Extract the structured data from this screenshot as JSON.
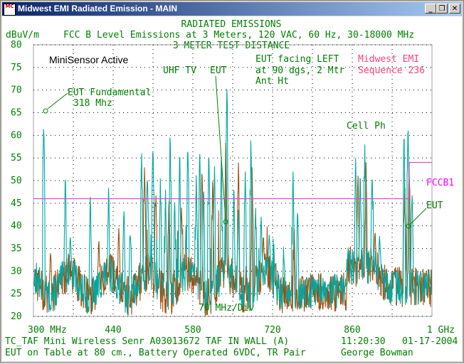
{
  "window": {
    "title": "Midwest EMI Radiated Emission - MAIN",
    "icon_label": "MC",
    "buttons": {
      "minimize": "_",
      "maximize": "❐",
      "close": "✕"
    }
  },
  "header": {
    "title": "RADIATED EMISSIONS",
    "subtitle": "FCC B Level Emissions at 3 Meters, 120 VAC, 60 Hz, 30-18000 MHz",
    "distance": "3 METER TEST DISTANCE",
    "units": "dBuV/m"
  },
  "annotations": {
    "minisensor": "MiniSensor Active",
    "uhf": "UHF TV",
    "eut_center": "EUT",
    "facing1": "EUT facing LEFT",
    "facing2": "at 90 dgs, 2 Mtr",
    "facing3": "Ant Ht",
    "company": "Midwest EMI",
    "sequence": "Sequence 236",
    "fundamental1": "EUT Fundamental",
    "fundamental2": "318 Mhz",
    "cell": "Cell Ph",
    "limit_label": "FCCB1",
    "eut_right": "EUT",
    "div_label": "70 MHz/Div"
  },
  "footer": {
    "line1_left": "TC_TAF Mini Wireless Senr  A03013672 TAF IN WALL (A)",
    "time": "11:20:30",
    "date": "01-17-2004",
    "line2_left": "EUT on Table at 80 cm., Battery Operated 6VDC, TR Pair",
    "operator": "George Bowman"
  },
  "colors": {
    "title_blue": "#0a246a",
    "text_green": "#008000",
    "text_magenta": "#ff00ff",
    "company_red": "#ff4080",
    "teal_trace": "#00a8a0",
    "brown_trace": "#a05010",
    "limit_line": "#d050d0",
    "grid_dots": "#000000"
  },
  "chart_data": {
    "type": "line",
    "ylabel": "dBuV/m",
    "ylim": [
      20,
      80
    ],
    "yticks": [
      "80",
      "75",
      "70",
      "65",
      "60",
      "55",
      "50",
      "45",
      "40",
      "35",
      "30",
      "25",
      "20"
    ],
    "xlim": [
      300,
      1000
    ],
    "xticks": [
      "300 MHz",
      "440",
      "580",
      "720",
      "860",
      "1 GHz"
    ],
    "xtick_values": [
      300,
      440,
      580,
      720,
      860,
      1000
    ],
    "series": [
      {
        "name": "FCCB1",
        "x": [
          300,
          960,
          960,
          1000
        ],
        "y": [
          46,
          46,
          54,
          54
        ]
      },
      {
        "color": "teal",
        "peaks": [
          [
            318,
            64
          ],
          [
            356,
            52
          ],
          [
            365,
            38
          ],
          [
            400,
            48
          ],
          [
            432,
            49
          ],
          [
            459,
            44
          ],
          [
            470,
            40
          ],
          [
            490,
            56
          ],
          [
            500,
            52
          ],
          [
            510,
            60
          ],
          [
            523,
            51
          ],
          [
            532,
            48
          ],
          [
            540,
            62
          ],
          [
            548,
            46
          ],
          [
            557,
            57
          ],
          [
            571,
            59
          ],
          [
            586,
            52
          ],
          [
            592,
            58
          ],
          [
            599,
            49
          ],
          [
            608,
            58
          ],
          [
            618,
            54
          ],
          [
            630,
            55
          ],
          [
            640,
            73
          ],
          [
            652,
            50
          ],
          [
            660,
            44
          ],
          [
            672,
            52
          ],
          [
            682,
            61
          ],
          [
            690,
            45
          ],
          [
            700,
            42
          ],
          [
            714,
            38
          ],
          [
            724,
            32
          ],
          [
            740,
            33
          ],
          [
            756,
            52
          ],
          [
            764,
            45
          ],
          [
            780,
            29
          ],
          [
            800,
            28
          ],
          [
            818,
            27
          ],
          [
            835,
            28
          ],
          [
            866,
            56
          ],
          [
            874,
            53
          ],
          [
            882,
            58
          ],
          [
            895,
            52
          ],
          [
            908,
            38
          ],
          [
            935,
            30
          ],
          [
            951,
            62
          ],
          [
            958,
            66
          ],
          [
            965,
            48
          ],
          [
            980,
            30
          ],
          [
            995,
            29
          ]
        ]
      },
      {
        "color": "brown",
        "peaks": [
          [
            330,
            35
          ],
          [
            372,
            33
          ],
          [
            415,
            37
          ],
          [
            450,
            40
          ],
          [
            495,
            54
          ],
          [
            515,
            48
          ],
          [
            538,
            48
          ],
          [
            560,
            44
          ],
          [
            596,
            54
          ],
          [
            615,
            52
          ],
          [
            638,
            60
          ],
          [
            660,
            55
          ],
          [
            684,
            54
          ],
          [
            704,
            38
          ],
          [
            718,
            30
          ],
          [
            758,
            40
          ],
          [
            870,
            52
          ],
          [
            884,
            55
          ],
          [
            900,
            39
          ],
          [
            952,
            50
          ],
          [
            960,
            54
          ],
          [
            990,
            30
          ]
        ]
      }
    ]
  }
}
